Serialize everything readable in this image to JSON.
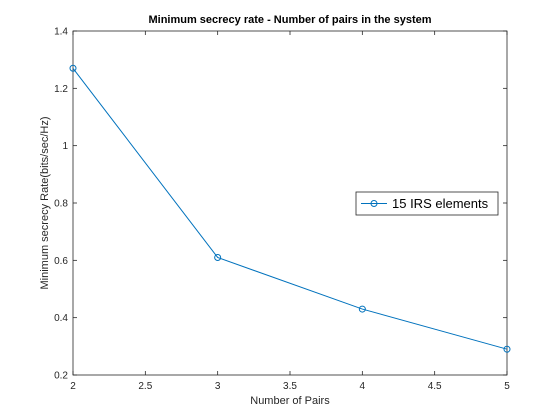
{
  "chart_data": {
    "type": "line",
    "title": "Minimum secrecy rate - Number of pairs in the system",
    "xlabel": "Number of Pairs",
    "ylabel": "Minimum secrecy Rate(bits/sec/Hz)",
    "xlim": [
      2,
      5
    ],
    "ylim": [
      0.2,
      1.4
    ],
    "xticks": [
      2,
      2.5,
      3,
      3.5,
      4,
      4.5,
      5
    ],
    "xtick_labels": [
      "2",
      "2.5",
      "3",
      "3.5",
      "4",
      "4.5",
      "5"
    ],
    "yticks": [
      0.2,
      0.4,
      0.6,
      0.8,
      1.0,
      1.2,
      1.4
    ],
    "ytick_labels": [
      "0.2",
      "0.4",
      "0.6",
      "0.8",
      "1",
      "1.2",
      "1.4"
    ],
    "grid": false,
    "legend_position": "right",
    "series": [
      {
        "name": "15 IRS elements",
        "color": "#0072bd",
        "marker": "circle",
        "x": [
          2,
          3,
          4,
          5
        ],
        "y": [
          1.27,
          0.61,
          0.43,
          0.29
        ]
      }
    ]
  }
}
